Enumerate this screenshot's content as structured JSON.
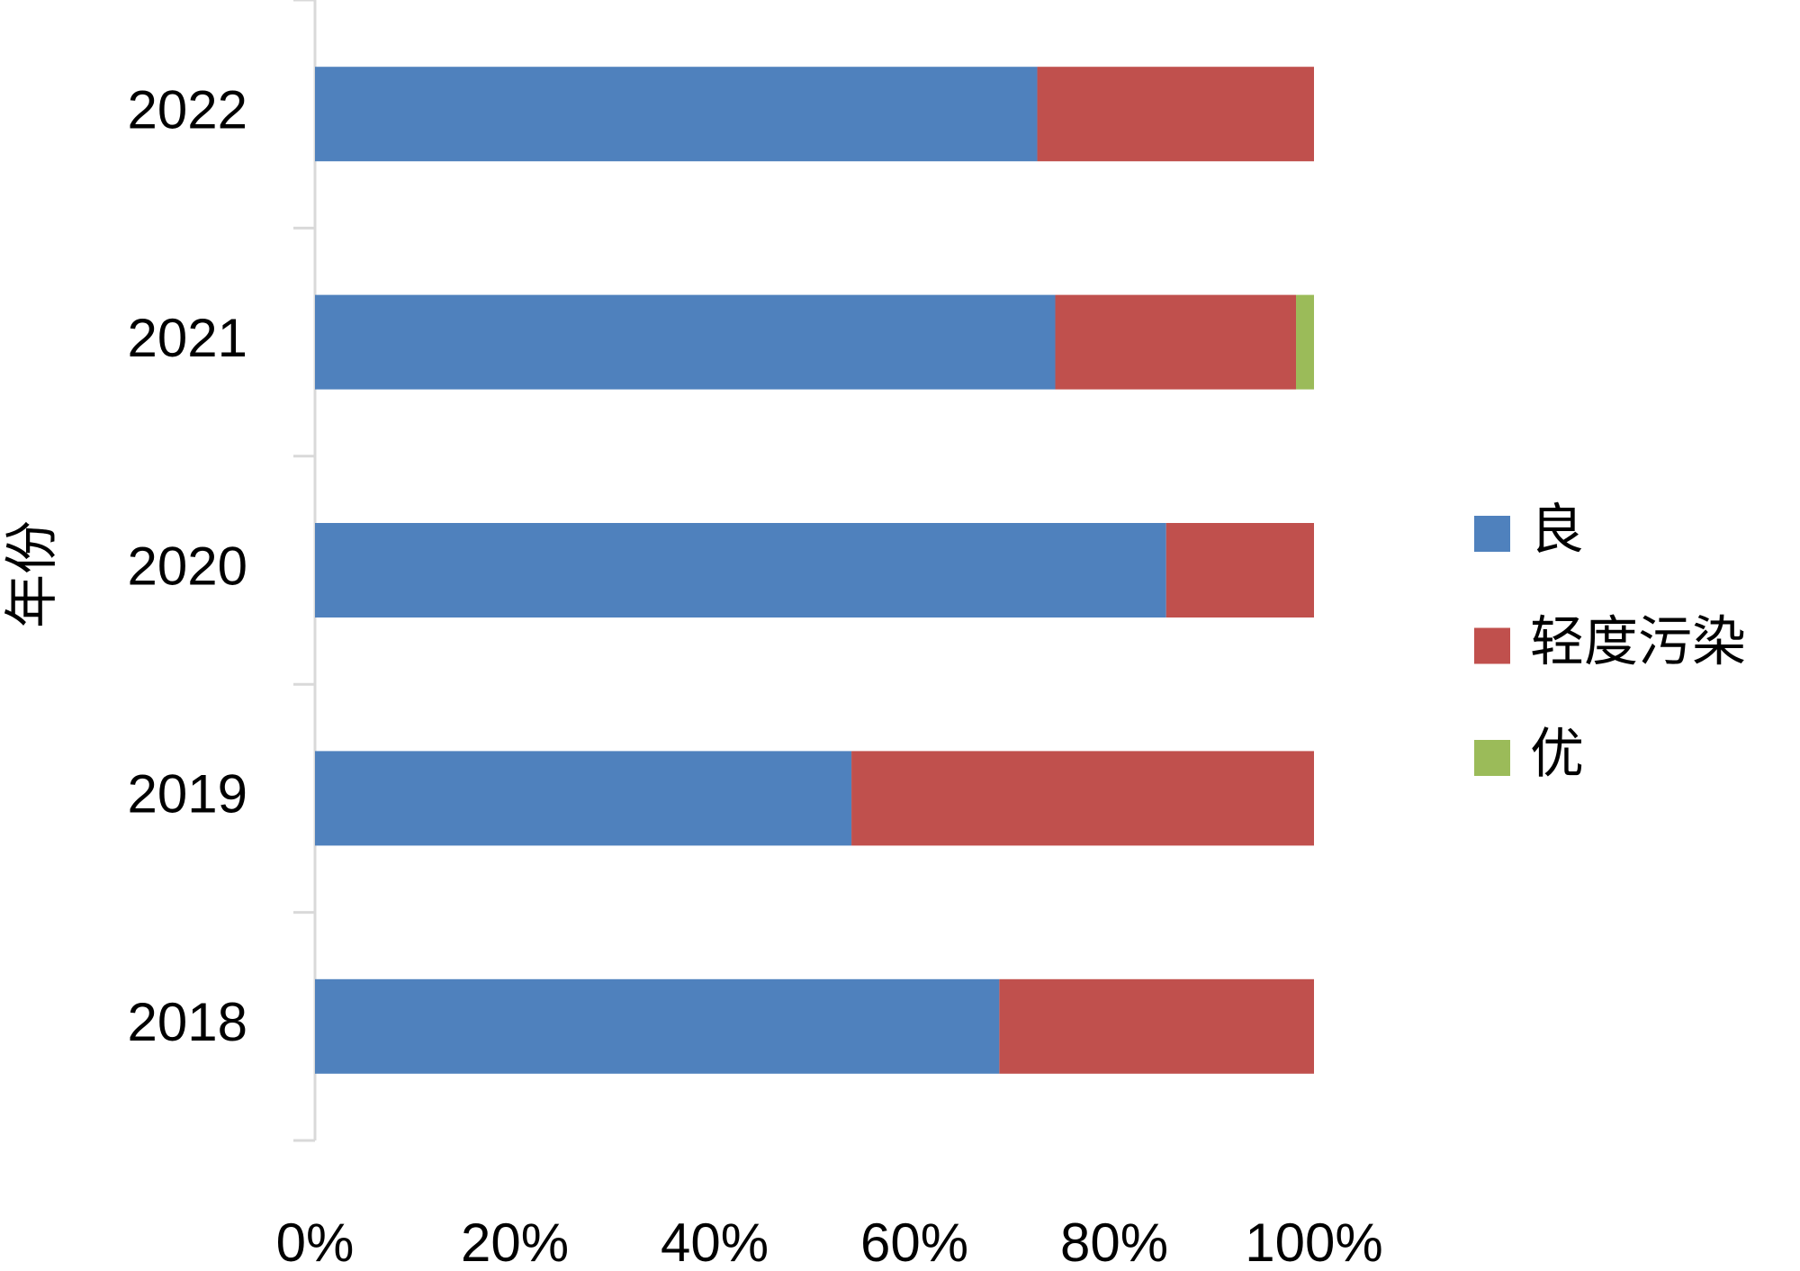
{
  "chart_data": {
    "type": "bar",
    "orientation": "horizontal",
    "stacked": true,
    "y_label": "年份",
    "categories": [
      "2018",
      "2019",
      "2020",
      "2021",
      "2022"
    ],
    "series": [
      {
        "name": "良",
        "color": "#4f81bd",
        "values": [
          68.5,
          53.7,
          85.2,
          74.1,
          72.3
        ]
      },
      {
        "name": "轻度污染",
        "color": "#c0504d",
        "values": [
          31.5,
          46.3,
          14.8,
          24.1,
          27.7
        ]
      },
      {
        "name": "优",
        "color": "#9bbb59",
        "values": [
          0,
          0,
          0,
          1.8,
          0
        ]
      }
    ],
    "xlim": [
      0,
      100
    ],
    "xticks": [
      {
        "value": 0,
        "label": "0%"
      },
      {
        "value": 20,
        "label": "20%"
      },
      {
        "value": 40,
        "label": "40%"
      },
      {
        "value": 60,
        "label": "60%"
      },
      {
        "value": 80,
        "label": "80%"
      },
      {
        "value": 100,
        "label": "100%"
      }
    ],
    "grid": false,
    "legend": "right"
  }
}
